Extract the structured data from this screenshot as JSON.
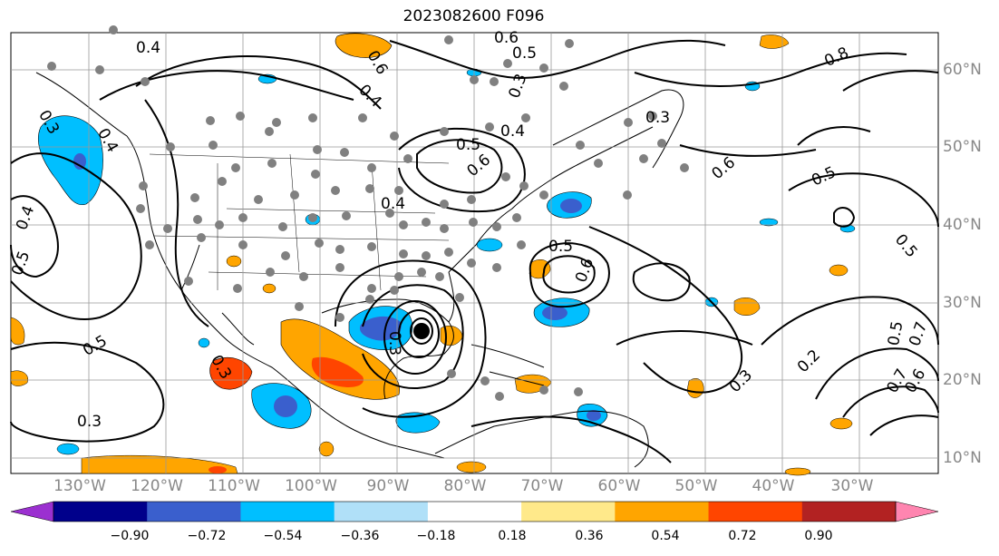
{
  "title": "2023082600 F096",
  "lon_labels": [
    "130°W",
    "120°W",
    "110°W",
    "100°W",
    "90°W",
    "80°W",
    "70°W",
    "60°W",
    "50°W",
    "40°W",
    "30°W"
  ],
  "lat_labels": [
    "60°N",
    "50°N",
    "40°N",
    "30°N",
    "20°N",
    "10°N"
  ],
  "colorbar": {
    "ticks": [
      "−0.90",
      "−0.72",
      "−0.54",
      "−0.36",
      "−0.18",
      "0.18",
      "0.36",
      "0.54",
      "0.72",
      "0.90"
    ],
    "colors": [
      "#9b30d0",
      "#00008b",
      "#3a5fcd",
      "#00bfff",
      "#b0e0f8",
      "#ffffff",
      "#ffe98a",
      "#ffa500",
      "#ff4500",
      "#b22222",
      "#ff85b0"
    ]
  },
  "contour_labels": [
    "0.4",
    "0.6",
    "0.6",
    "0.4",
    "0.3",
    "0.5",
    "0.4",
    "0.3",
    "0.8",
    "0.5",
    "0.5",
    "0.6",
    "0.5",
    "0.6",
    "0.4",
    "0.5",
    "0.5",
    "0.3",
    "0.3",
    "0.4",
    "0.5",
    "0.6",
    "0.3",
    "0.4",
    "0.3",
    "0.2",
    "0.3",
    "0.5",
    "0.7",
    "0.7",
    "0.6"
  ]
}
